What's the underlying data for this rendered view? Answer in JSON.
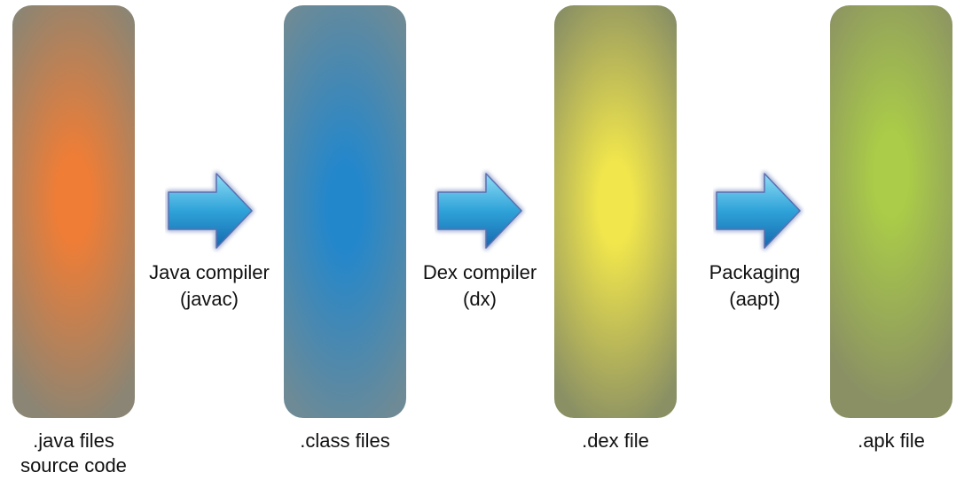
{
  "stages": [
    {
      "id": "java",
      "line1": ".java files",
      "line2": "source code",
      "center_color": "#ef7d36",
      "edge_color": "#8a8574"
    },
    {
      "id": "class",
      "line1": ".class files",
      "line2": "",
      "center_color": "#2387cc",
      "edge_color": "#6d8a96"
    },
    {
      "id": "dex",
      "line1": ".dex file",
      "line2": "",
      "center_color": "#f1e64c",
      "edge_color": "#8a9064"
    },
    {
      "id": "apk",
      "line1": ".apk file",
      "line2": "",
      "center_color": "#aacc48",
      "edge_color": "#8a9064"
    }
  ],
  "steps": [
    {
      "id": "javac",
      "line1": "Java compiler",
      "line2": "(javac)"
    },
    {
      "id": "dx",
      "line1": "Dex compiler",
      "line2": "(dx)"
    },
    {
      "id": "aapt",
      "line1": "Packaging",
      "line2": "(aapt)"
    }
  ],
  "arrow_colors": {
    "light": "#8fdcf4",
    "mid": "#2fa3d9",
    "dark": "#1568ad",
    "outline": "#5b6fb0"
  }
}
